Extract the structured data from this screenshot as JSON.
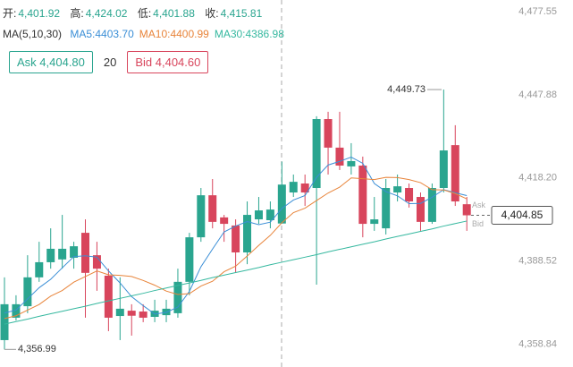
{
  "chart_data": {
    "type": "candlestick",
    "header": [
      {
        "label": "开:",
        "value": "4,401.92"
      },
      {
        "label": "高:",
        "value": "4,424.02"
      },
      {
        "label": "低:",
        "value": "4,401.88"
      },
      {
        "label": "收:",
        "value": "4,415.81"
      }
    ],
    "ma_title": "MA(5,10,30)",
    "ask_button": "Ask 4,404.80",
    "quantity": "20",
    "bid_button": "Bid 4,404.60",
    "up_color": "#2aa58f",
    "down_color": "#d8455c",
    "ylim": [
      4350.7,
      4481.7
    ],
    "yticks": [
      {
        "value": 4477.55,
        "label": "4,477.55"
      },
      {
        "value": 4447.88,
        "label": "4,447.88"
      },
      {
        "value": 4418.2,
        "label": "4,418.20"
      },
      {
        "value": 4388.52,
        "label": "4,388.52"
      },
      {
        "value": 4358.84,
        "label": "4,358.84"
      }
    ],
    "grid": false,
    "candles": {
      "open": [
        4360.3,
        4368.3,
        4372.4,
        4382.7,
        4388.1,
        4389.1,
        4389.7,
        4398.6,
        4390.6,
        4383.3,
        4368.9,
        4370.8,
        4370.5,
        4368.6,
        4369.2,
        4369.9,
        4381.1,
        4397.0,
        4412.0,
        4404.1,
        4401.2,
        4391.6,
        4403.4,
        4403.1,
        4401.92,
        4413.0,
        4416.2,
        4414.6,
        4439.2,
        4429.0,
        4422.3,
        4422.6,
        4401.8,
        4400.2,
        4413.0,
        4414.6,
        4411.4,
        4402.5,
        4414.6,
        4429.9,
        4408.8
      ],
      "high": [
        4382.7,
        4376.3,
        4390.6,
        4395.4,
        4400.2,
        4405.0,
        4395.4,
        4403.4,
        4395.4,
        4385.8,
        4382.7,
        4373.1,
        4373.1,
        4374.7,
        4374.7,
        4385.8,
        4398.6,
        4414.6,
        4417.8,
        4405.0,
        4403.4,
        4409.8,
        4411.4,
        4409.8,
        4424.02,
        4419.4,
        4419.4,
        4440.2,
        4441.8,
        4441.8,
        4430.6,
        4425.8,
        4411.4,
        4417.8,
        4419.4,
        4416.2,
        4413.0,
        4416.2,
        4449.73,
        4437.0,
        4411.4
      ],
      "low": [
        4356.99,
        4367.3,
        4369.9,
        4381.1,
        4385.8,
        4385.8,
        4385.8,
        4368.3,
        4377.9,
        4363.5,
        4360.3,
        4361.9,
        4366.7,
        4366.7,
        4366.7,
        4368.3,
        4376.3,
        4395.4,
        4400.2,
        4395.4,
        4384.3,
        4387.4,
        4401.8,
        4400.2,
        4401.88,
        4411.4,
        4408.2,
        4380.1,
        4419.4,
        4421.0,
        4419.4,
        4397.0,
        4399.3,
        4398.0,
        4409.8,
        4407.6,
        4399.3,
        4401.8,
        4413.0,
        4408.2,
        4399.3
      ],
      "close": [
        4373.1,
        4373.1,
        4382.7,
        4388.1,
        4392.9,
        4392.9,
        4393.8,
        4384.3,
        4385.8,
        4368.3,
        4371.5,
        4369.0,
        4368.3,
        4370.8,
        4371.5,
        4381.1,
        4397.0,
        4412.0,
        4402.5,
        4401.8,
        4391.6,
        4405.0,
        4406.6,
        4406.9,
        4415.81,
        4416.8,
        4413.0,
        4439.2,
        4429.0,
        4422.6,
        4424.2,
        4401.8,
        4403.4,
        4414.6,
        4415.2,
        4409.8,
        4402.5,
        4414.6,
        4428.0,
        4409.8,
        4404.85
      ]
    },
    "ma_lines": [
      {
        "name": "MA5:4403.70",
        "color": "#3a8ed6",
        "values": [
          4370,
          4371,
          4375,
          4379,
          4382.0,
          4386.1,
          4390.1,
          4390.4,
          4389.9,
          4385.0,
          4380.7,
          4375.8,
          4372.6,
          4369.6,
          4370.2,
          4372.1,
          4377.7,
          4386.5,
          4392.8,
          4398.9,
          4401.0,
          4402.6,
          4401.5,
          4402.4,
          4407.3,
          4410.3,
          4411.9,
          4418.4,
          4422.8,
          4424.1,
          4425.6,
          4423.4,
          4416.2,
          4413.3,
          4411.8,
          4409.0,
          4409.1,
          4411.3,
          4414.0,
          4412.9,
          4411.9
        ]
      },
      {
        "name": "MA10:4400.99",
        "color": "#e8843a",
        "values": [
          4368,
          4369,
          4371,
          4373,
          4376,
          4378,
          4381,
          4383,
          4385,
          4383.6,
          4383.4,
          4383.0,
          4381.6,
          4379.9,
          4377.8,
          4376.6,
          4376.9,
          4379.6,
          4381.3,
          4384.7,
          4386.7,
          4390.3,
          4394.1,
          4397.7,
          4402.2,
          4405.8,
          4407.4,
          4410.1,
          4412.8,
          4414.9,
          4418.2,
          4417.9,
          4417.6,
          4418.4,
          4418.3,
          4417.6,
          4416.5,
          4414.0,
          4413.9,
          4412.6,
          4410.7
        ]
      },
      {
        "name": "MA30:4386.98",
        "color": "#35b89f",
        "values": [
          4366.0,
          4366.9,
          4367.8,
          4368.8,
          4369.7,
          4370.6,
          4371.5,
          4372.4,
          4373.4,
          4374.3,
          4375.2,
          4376.1,
          4377.0,
          4378.0,
          4378.9,
          4379.8,
          4380.7,
          4381.6,
          4382.6,
          4383.5,
          4384.4,
          4385.3,
          4386.2,
          4387.2,
          4388.1,
          4389.0,
          4389.9,
          4390.8,
          4391.8,
          4392.7,
          4393.6,
          4394.5,
          4395.4,
          4396.4,
          4397.3,
          4398.2,
          4399.1,
          4400.0,
          4401.0,
          4401.9,
          4402.8
        ]
      }
    ],
    "high_label": {
      "value": 4449.73,
      "label": "4,449.73"
    },
    "low_label": {
      "value": 4356.99,
      "label": "4,356.99"
    },
    "last_price": {
      "value": 4404.85,
      "label": "4,404.85"
    },
    "ask_tag": "Ask",
    "bid_tag": "Bid"
  }
}
